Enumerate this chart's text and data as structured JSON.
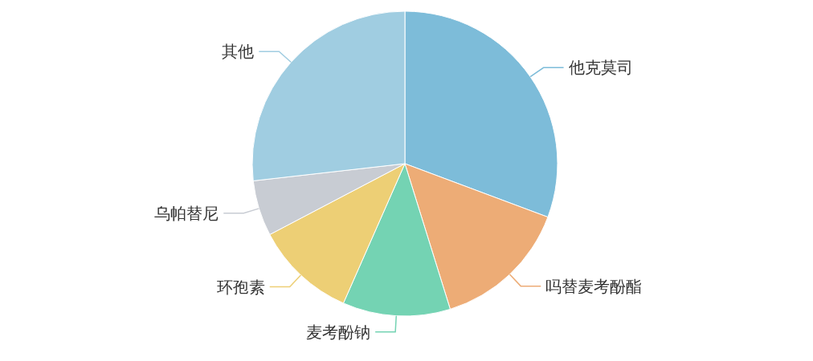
{
  "chart_data": {
    "type": "pie",
    "categories": [
      "他克莫司",
      "吗替麦考酚酯",
      "麦考酚钠",
      "环孢素",
      "乌帕替尼",
      "其他"
    ],
    "values": [
      30.7,
      14.5,
      11.4,
      10.7,
      5.9,
      26.8
    ],
    "colors": [
      "#7dbcd9",
      "#edac76",
      "#74d3b3",
      "#edcf75",
      "#c8ccd3",
      "#a0cde1"
    ]
  }
}
